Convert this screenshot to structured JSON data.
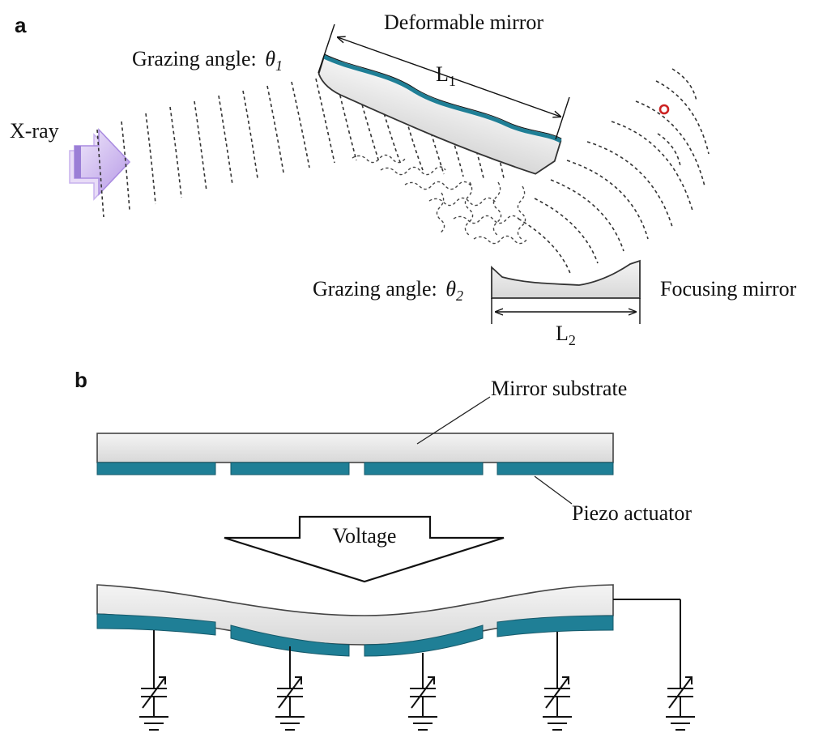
{
  "panel_a": {
    "label": "a",
    "xray_label": "X-ray",
    "deformable_mirror_label": "Deformable mirror",
    "grazing_angle_1": {
      "prefix": "Grazing angle: ",
      "symbol": "θ",
      "subscript": "1"
    },
    "length_1": {
      "symbol": "L",
      "subscript": "1"
    },
    "grazing_angle_2": {
      "prefix": "Grazing angle: ",
      "symbol": "θ",
      "subscript": "2"
    },
    "focusing_mirror_label": "Focusing mirror",
    "length_2": {
      "symbol": "L",
      "subscript": "2"
    }
  },
  "panel_b": {
    "label": "b",
    "mirror_substrate_label": "Mirror substrate",
    "piezo_actuator_label": "Piezo actuator",
    "voltage_label": "Voltage"
  },
  "colors": {
    "piezo": "#1f7f96",
    "substrate": "#e8e8e8",
    "arrow_light": "#d9c8f3",
    "arrow_mid": "#b497e6",
    "focus_point": "#cc2222"
  }
}
